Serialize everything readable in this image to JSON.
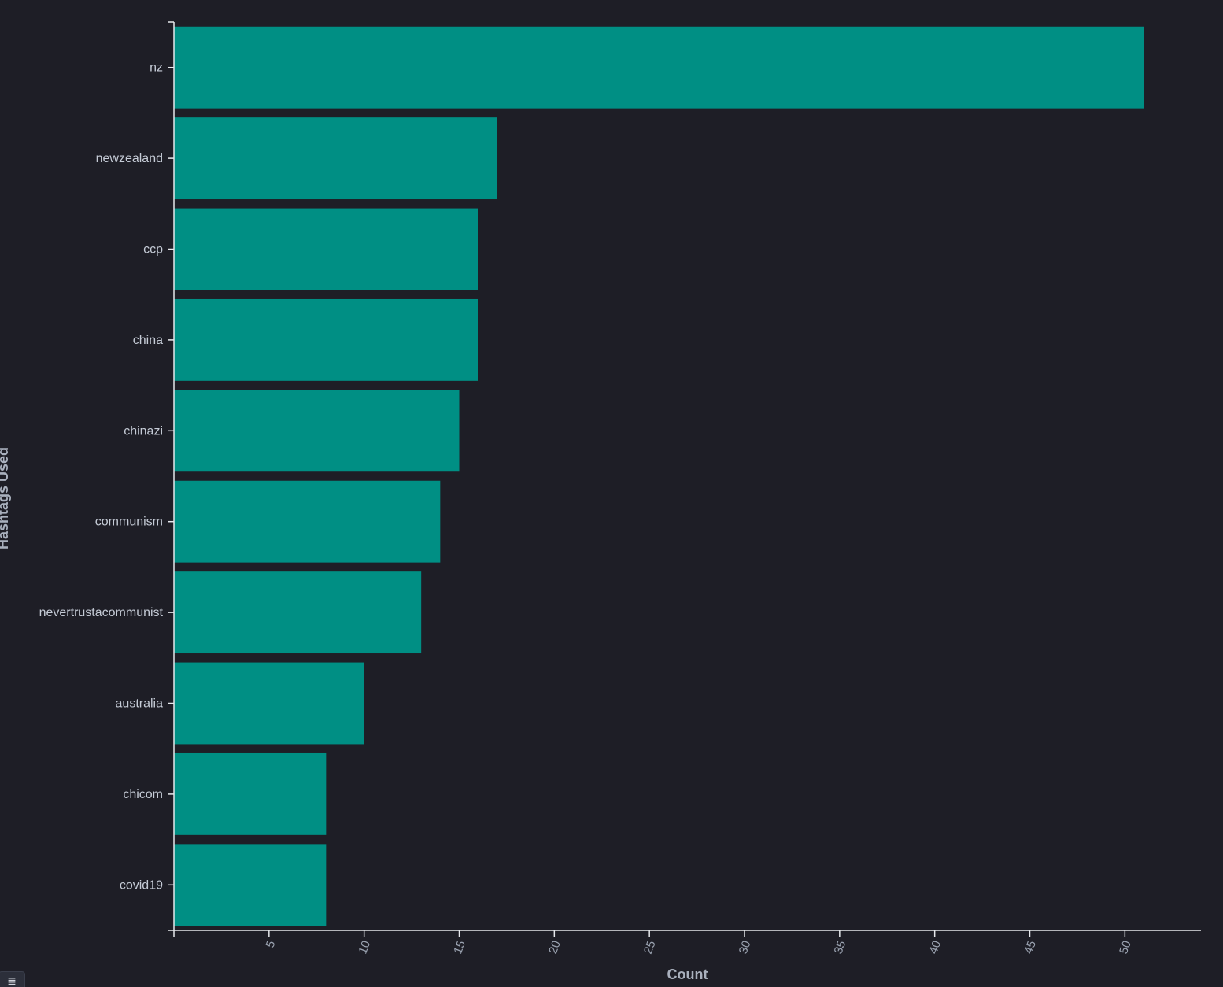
{
  "chart_data": {
    "type": "bar",
    "orientation": "horizontal",
    "categories": [
      "nz",
      "newzealand",
      "ccp",
      "china",
      "chinazi",
      "communism",
      "nevertrustacommunist",
      "australia",
      "chicom",
      "covid19"
    ],
    "values": [
      51,
      17,
      16,
      16,
      15,
      14,
      13,
      10,
      8,
      8
    ],
    "xlabel": "Count",
    "ylabel": "Hashtags Used",
    "xlim": [
      0,
      54
    ],
    "x_ticks": [
      5,
      10,
      15,
      20,
      25,
      30,
      35,
      40,
      45,
      50
    ],
    "grid": false,
    "bar_color": "#008f84",
    "background": "#1e1e26"
  },
  "ui": {
    "legend_toggle_icon": "list-icon",
    "legend_toggle_glyph": "≣"
  }
}
